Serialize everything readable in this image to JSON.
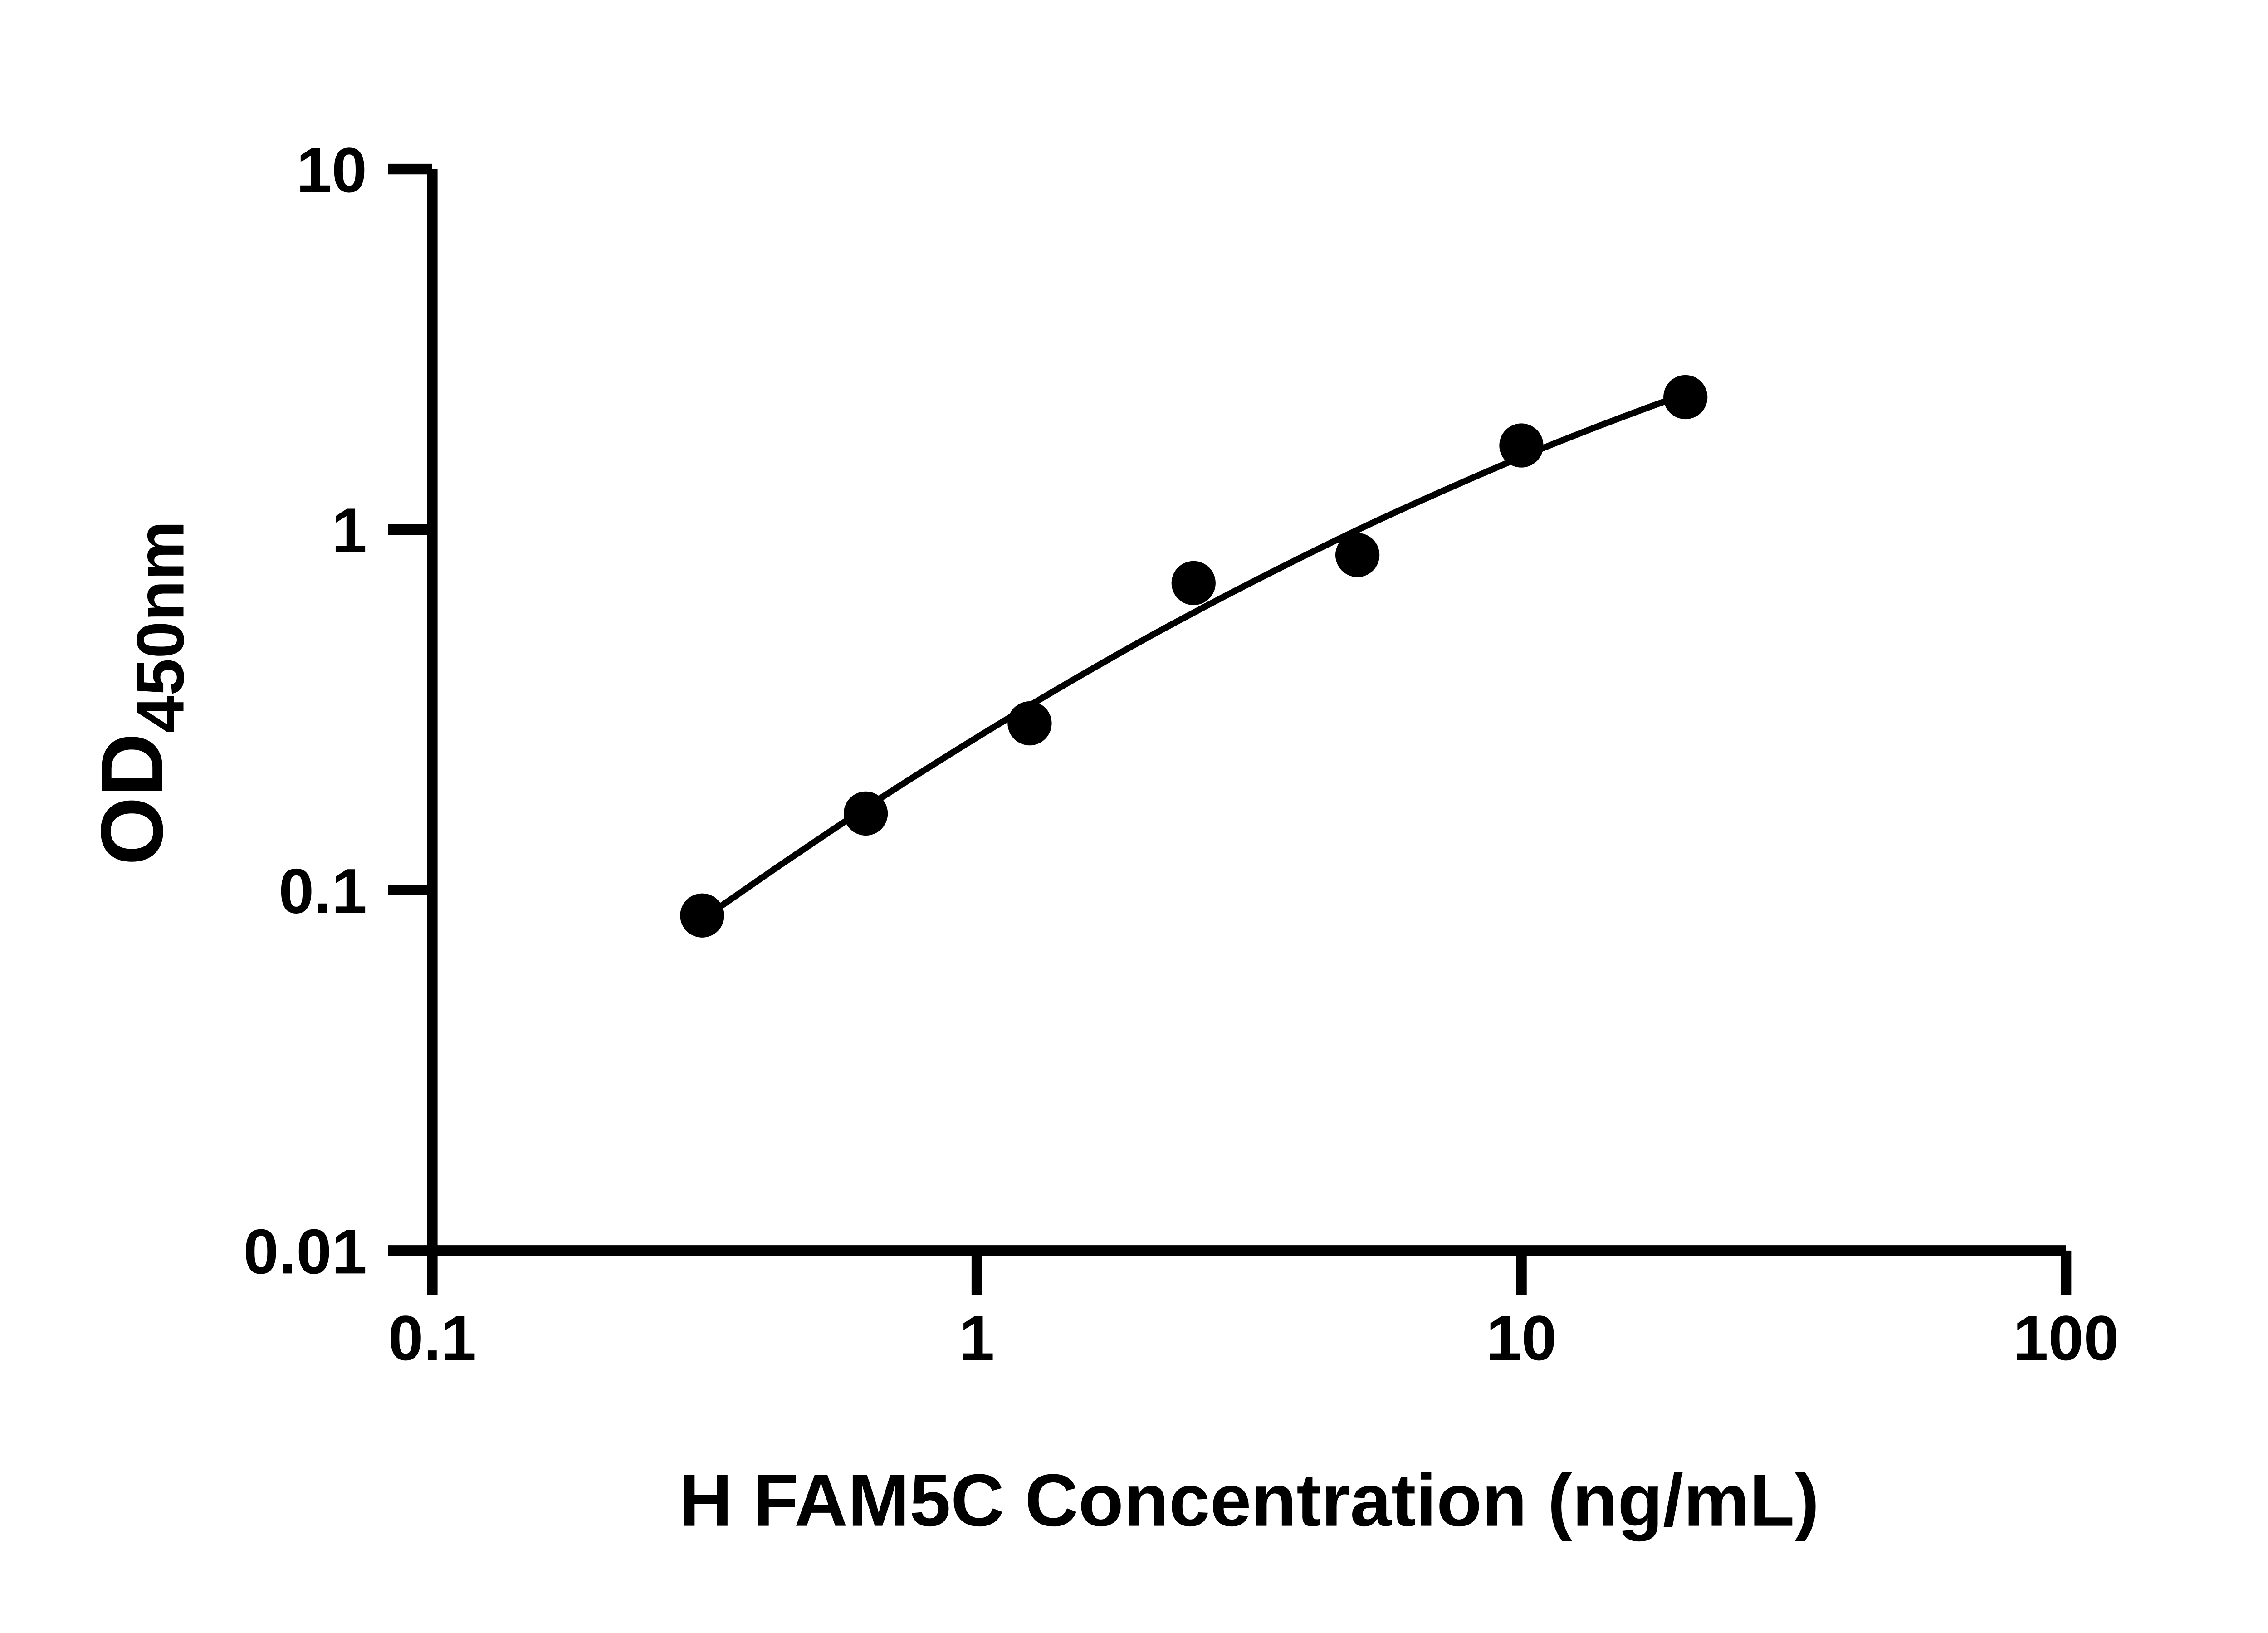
{
  "chart_data": {
    "type": "scatter",
    "title": "",
    "xlabel": "H FAM5C Concentration (ng/mL)",
    "ylabel": "OD",
    "ylabel_subscript": "450nm",
    "x_scale": "log",
    "y_scale": "log",
    "xlim": [
      0.1,
      100
    ],
    "ylim": [
      0.01,
      10
    ],
    "grid": false,
    "legend": false,
    "x_ticks": [
      {
        "value": 0.1,
        "label": "0.1"
      },
      {
        "value": 1,
        "label": "1"
      },
      {
        "value": 10,
        "label": "10"
      },
      {
        "value": 100,
        "label": "100"
      }
    ],
    "y_ticks": [
      {
        "value": 10,
        "label": "10"
      },
      {
        "value": 1,
        "label": "1"
      },
      {
        "value": 0.1,
        "label": "0.1"
      },
      {
        "value": 0.01,
        "label": "0.01"
      }
    ],
    "points": [
      {
        "x": 0.313,
        "y": 0.085
      },
      {
        "x": 0.625,
        "y": 0.163
      },
      {
        "x": 1.25,
        "y": 0.29
      },
      {
        "x": 2.5,
        "y": 0.71
      },
      {
        "x": 5,
        "y": 0.85
      },
      {
        "x": 10,
        "y": 1.71
      },
      {
        "x": 20,
        "y": 2.33
      }
    ],
    "fit_curve": [
      {
        "x": 0.313,
        "y": 0.083
      },
      {
        "x": 0.442,
        "y": 0.119
      },
      {
        "x": 0.625,
        "y": 0.169
      },
      {
        "x": 0.884,
        "y": 0.236
      },
      {
        "x": 1.25,
        "y": 0.325
      },
      {
        "x": 1.768,
        "y": 0.441
      },
      {
        "x": 2.5,
        "y": 0.588
      },
      {
        "x": 3.536,
        "y": 0.771
      },
      {
        "x": 5,
        "y": 0.997
      },
      {
        "x": 7.071,
        "y": 1.268
      },
      {
        "x": 10,
        "y": 1.589
      },
      {
        "x": 14.14,
        "y": 1.959
      },
      {
        "x": 20,
        "y": 2.378
      }
    ],
    "colors": {
      "axis": "#000000",
      "point": "#000000",
      "curve": "#000000",
      "background": "#ffffff"
    }
  }
}
